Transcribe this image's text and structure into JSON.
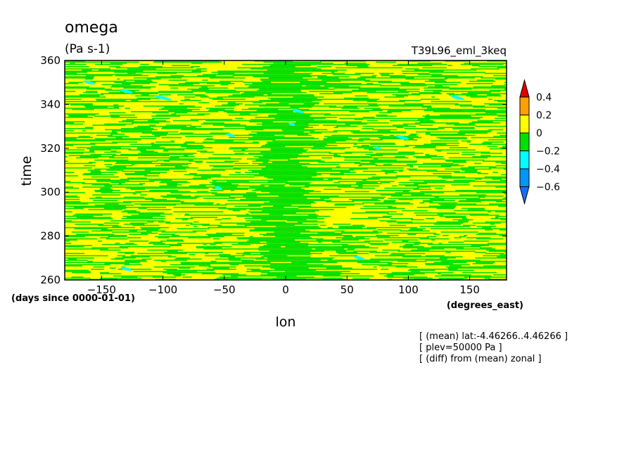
{
  "chart_data": {
    "type": "heatmap",
    "title": "omega",
    "units": "(Pa s-1)",
    "experiment": "T39L96_eml_3keq",
    "xlabel": "lon",
    "ylabel": "time",
    "x_units": "(degrees_east)",
    "y_units": "(days since 0000-01-01)",
    "xlim": [
      -180,
      180
    ],
    "ylim": [
      260,
      360
    ],
    "x_ticks": [
      -150,
      -100,
      -50,
      0,
      50,
      100,
      150
    ],
    "y_ticks": [
      260,
      280,
      300,
      320,
      340,
      360
    ],
    "colorbar": {
      "levels": [
        -0.6,
        -0.4,
        -0.2,
        0,
        0.2,
        0.4
      ],
      "colors": [
        "#1e6cf0",
        "#0096f5",
        "#00ffff",
        "#00e000",
        "#ffff00",
        "#ffa000",
        "#e00000"
      ],
      "extend": "both"
    },
    "annotations": [
      "[ (mean) lat:-4.46266..4.46266 ]",
      "[ plev=50000 Pa ]",
      "[ (diff) from (mean) zonal ]"
    ],
    "grid": false
  }
}
